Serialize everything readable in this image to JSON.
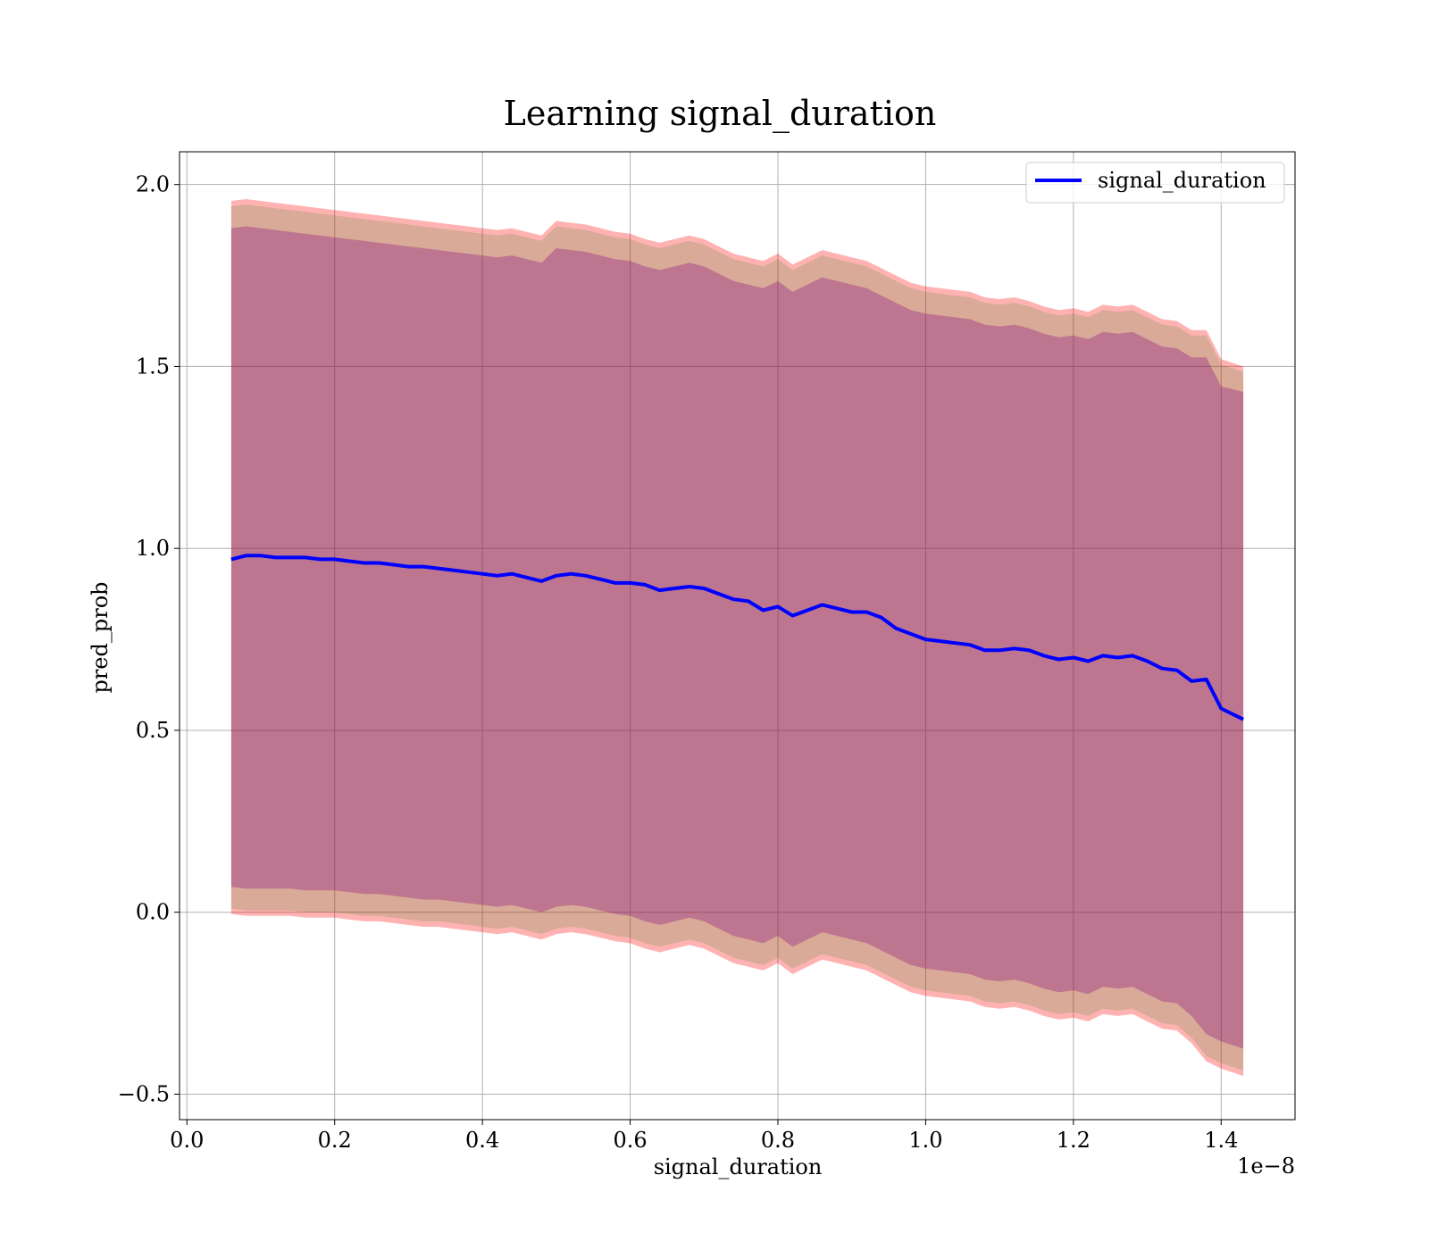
{
  "chart_data": {
    "type": "line",
    "title": "Learning signal_duration",
    "xlabel": "signal_duration",
    "ylabel": "pred_prob",
    "x_offset_label": "1e−8",
    "xlim": [
      -0.01,
      1.5
    ],
    "ylim": [
      -0.57,
      2.09
    ],
    "grid": true,
    "legend_position": "upper right",
    "x_ticks": [
      {
        "value": 0.0,
        "label": "0.0"
      },
      {
        "value": 0.2,
        "label": "0.2"
      },
      {
        "value": 0.4,
        "label": "0.4"
      },
      {
        "value": 0.6,
        "label": "0.6"
      },
      {
        "value": 0.8,
        "label": "0.8"
      },
      {
        "value": 1.0,
        "label": "1.0"
      },
      {
        "value": 1.2,
        "label": "1.2"
      },
      {
        "value": 1.4,
        "label": "1.4"
      }
    ],
    "y_ticks": [
      {
        "value": -0.5,
        "label": "−0.5"
      },
      {
        "value": 0.0,
        "label": "0.0"
      },
      {
        "value": 0.5,
        "label": "0.5"
      },
      {
        "value": 1.0,
        "label": "1.0"
      },
      {
        "value": 1.5,
        "label": "1.5"
      },
      {
        "value": 2.0,
        "label": "2.0"
      }
    ],
    "series": [
      {
        "name": "signal_duration",
        "color": "#0000ff",
        "x": [
          0.06,
          0.08,
          0.1,
          0.12,
          0.14,
          0.16,
          0.18,
          0.2,
          0.22,
          0.24,
          0.26,
          0.28,
          0.3,
          0.32,
          0.34,
          0.36,
          0.38,
          0.4,
          0.42,
          0.44,
          0.46,
          0.48,
          0.5,
          0.52,
          0.54,
          0.56,
          0.58,
          0.6,
          0.62,
          0.64,
          0.66,
          0.68,
          0.7,
          0.72,
          0.74,
          0.76,
          0.78,
          0.8,
          0.82,
          0.84,
          0.86,
          0.88,
          0.9,
          0.92,
          0.94,
          0.96,
          0.98,
          1.0,
          1.02,
          1.04,
          1.06,
          1.08,
          1.1,
          1.12,
          1.14,
          1.16,
          1.18,
          1.2,
          1.22,
          1.24,
          1.26,
          1.28,
          1.3,
          1.32,
          1.34,
          1.36,
          1.38,
          1.4,
          1.43
        ],
        "y": [
          0.97,
          0.98,
          0.98,
          0.975,
          0.975,
          0.975,
          0.97,
          0.97,
          0.965,
          0.96,
          0.96,
          0.955,
          0.95,
          0.95,
          0.945,
          0.94,
          0.935,
          0.93,
          0.925,
          0.93,
          0.92,
          0.91,
          0.925,
          0.93,
          0.925,
          0.915,
          0.905,
          0.905,
          0.9,
          0.885,
          0.89,
          0.895,
          0.89,
          0.875,
          0.86,
          0.855,
          0.83,
          0.84,
          0.815,
          0.83,
          0.845,
          0.835,
          0.825,
          0.825,
          0.81,
          0.78,
          0.765,
          0.75,
          0.745,
          0.74,
          0.735,
          0.72,
          0.72,
          0.725,
          0.72,
          0.705,
          0.695,
          0.7,
          0.69,
          0.705,
          0.7,
          0.705,
          0.69,
          0.67,
          0.665,
          0.635,
          0.64,
          0.56,
          0.53
        ]
      }
    ],
    "bands": [
      {
        "color": "#ff0000",
        "opacity": 0.3,
        "upper": [
          1.955,
          1.96,
          1.955,
          1.95,
          1.945,
          1.94,
          1.935,
          1.93,
          1.925,
          1.92,
          1.915,
          1.91,
          1.905,
          1.9,
          1.895,
          1.89,
          1.885,
          1.88,
          1.875,
          1.88,
          1.87,
          1.86,
          1.9,
          1.895,
          1.89,
          1.88,
          1.87,
          1.865,
          1.85,
          1.84,
          1.85,
          1.86,
          1.85,
          1.83,
          1.81,
          1.8,
          1.79,
          1.81,
          1.78,
          1.8,
          1.82,
          1.81,
          1.8,
          1.79,
          1.77,
          1.75,
          1.73,
          1.72,
          1.715,
          1.71,
          1.705,
          1.69,
          1.685,
          1.69,
          1.68,
          1.665,
          1.655,
          1.66,
          1.65,
          1.67,
          1.665,
          1.67,
          1.65,
          1.63,
          1.625,
          1.6,
          1.6,
          1.52,
          1.5
        ],
        "lower": [
          -0.005,
          -0.01,
          -0.01,
          -0.01,
          -0.01,
          -0.015,
          -0.015,
          -0.015,
          -0.02,
          -0.025,
          -0.025,
          -0.03,
          -0.035,
          -0.04,
          -0.04,
          -0.045,
          -0.05,
          -0.055,
          -0.06,
          -0.055,
          -0.065,
          -0.075,
          -0.06,
          -0.055,
          -0.06,
          -0.07,
          -0.08,
          -0.085,
          -0.1,
          -0.11,
          -0.1,
          -0.09,
          -0.1,
          -0.12,
          -0.14,
          -0.15,
          -0.16,
          -0.14,
          -0.17,
          -0.15,
          -0.13,
          -0.14,
          -0.15,
          -0.16,
          -0.18,
          -0.2,
          -0.22,
          -0.23,
          -0.235,
          -0.24,
          -0.245,
          -0.26,
          -0.265,
          -0.26,
          -0.27,
          -0.285,
          -0.295,
          -0.29,
          -0.3,
          -0.28,
          -0.285,
          -0.28,
          -0.3,
          -0.32,
          -0.325,
          -0.36,
          -0.41,
          -0.43,
          -0.45
        ]
      },
      {
        "color": "#008000",
        "opacity": 0.15,
        "upper": [
          1.94,
          1.945,
          1.94,
          1.935,
          1.93,
          1.925,
          1.92,
          1.915,
          1.91,
          1.905,
          1.9,
          1.895,
          1.89,
          1.885,
          1.88,
          1.875,
          1.87,
          1.865,
          1.86,
          1.865,
          1.855,
          1.845,
          1.885,
          1.88,
          1.875,
          1.865,
          1.855,
          1.85,
          1.835,
          1.825,
          1.835,
          1.845,
          1.835,
          1.815,
          1.795,
          1.785,
          1.775,
          1.795,
          1.765,
          1.785,
          1.805,
          1.795,
          1.785,
          1.775,
          1.755,
          1.735,
          1.715,
          1.705,
          1.7,
          1.695,
          1.69,
          1.675,
          1.67,
          1.675,
          1.665,
          1.65,
          1.64,
          1.645,
          1.635,
          1.655,
          1.65,
          1.655,
          1.635,
          1.615,
          1.61,
          1.585,
          1.585,
          1.505,
          1.485
        ],
        "lower": [
          0.01,
          0.005,
          0.005,
          0.005,
          0.005,
          0.0,
          0.0,
          0.0,
          -0.005,
          -0.01,
          -0.01,
          -0.015,
          -0.02,
          -0.025,
          -0.025,
          -0.03,
          -0.035,
          -0.04,
          -0.045,
          -0.04,
          -0.05,
          -0.06,
          -0.045,
          -0.04,
          -0.045,
          -0.055,
          -0.065,
          -0.07,
          -0.085,
          -0.095,
          -0.085,
          -0.075,
          -0.085,
          -0.105,
          -0.125,
          -0.135,
          -0.145,
          -0.125,
          -0.155,
          -0.135,
          -0.115,
          -0.125,
          -0.135,
          -0.145,
          -0.165,
          -0.185,
          -0.205,
          -0.215,
          -0.22,
          -0.225,
          -0.23,
          -0.245,
          -0.25,
          -0.245,
          -0.255,
          -0.27,
          -0.28,
          -0.275,
          -0.285,
          -0.265,
          -0.27,
          -0.265,
          -0.285,
          -0.305,
          -0.31,
          -0.345,
          -0.395,
          -0.415,
          -0.435
        ]
      },
      {
        "color": "#800080",
        "opacity": 0.3,
        "upper": [
          1.88,
          1.885,
          1.88,
          1.875,
          1.87,
          1.865,
          1.86,
          1.855,
          1.85,
          1.845,
          1.84,
          1.835,
          1.83,
          1.825,
          1.82,
          1.815,
          1.81,
          1.805,
          1.8,
          1.805,
          1.795,
          1.785,
          1.825,
          1.82,
          1.815,
          1.805,
          1.795,
          1.79,
          1.775,
          1.765,
          1.775,
          1.785,
          1.775,
          1.755,
          1.735,
          1.725,
          1.715,
          1.735,
          1.705,
          1.725,
          1.745,
          1.735,
          1.725,
          1.715,
          1.695,
          1.675,
          1.655,
          1.645,
          1.64,
          1.635,
          1.63,
          1.615,
          1.61,
          1.615,
          1.605,
          1.59,
          1.58,
          1.585,
          1.575,
          1.595,
          1.59,
          1.595,
          1.575,
          1.555,
          1.55,
          1.525,
          1.525,
          1.445,
          1.43
        ],
        "lower": [
          0.07,
          0.065,
          0.065,
          0.065,
          0.065,
          0.06,
          0.06,
          0.06,
          0.055,
          0.05,
          0.05,
          0.045,
          0.04,
          0.035,
          0.035,
          0.03,
          0.025,
          0.02,
          0.015,
          0.02,
          0.01,
          0.0,
          0.015,
          0.02,
          0.015,
          0.005,
          -0.005,
          -0.01,
          -0.025,
          -0.035,
          -0.025,
          -0.015,
          -0.025,
          -0.045,
          -0.065,
          -0.075,
          -0.085,
          -0.065,
          -0.095,
          -0.075,
          -0.055,
          -0.065,
          -0.075,
          -0.085,
          -0.105,
          -0.125,
          -0.145,
          -0.155,
          -0.16,
          -0.165,
          -0.17,
          -0.185,
          -0.19,
          -0.185,
          -0.195,
          -0.21,
          -0.22,
          -0.215,
          -0.225,
          -0.205,
          -0.21,
          -0.205,
          -0.225,
          -0.245,
          -0.25,
          -0.285,
          -0.335,
          -0.355,
          -0.375
        ]
      }
    ]
  }
}
